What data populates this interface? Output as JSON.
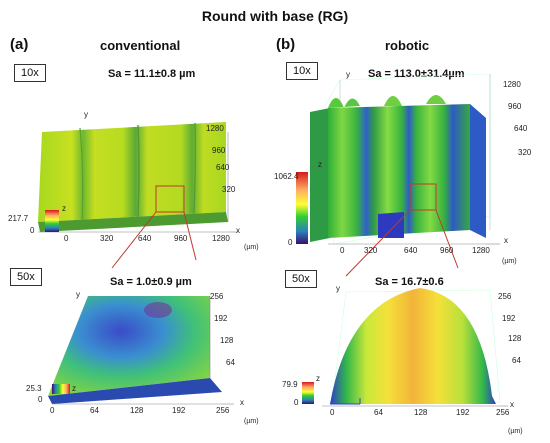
{
  "figure_title": "Round with base (RG)",
  "left": {
    "panel_label": "(a)",
    "column_title": "conventional",
    "mag_10x": {
      "label": "10x",
      "sa": "Sa = 11.1±0.8 µm",
      "y_ticks": [
        "1280",
        "960",
        "640",
        "320"
      ],
      "x_ticks": [
        "0",
        "320",
        "640",
        "960",
        "1280"
      ],
      "axis_y": "y",
      "axis_x": "x",
      "axis_z": "z",
      "colorbar_max": "217.7",
      "colorbar_min": "0",
      "unit": "(µm)"
    },
    "mag_50x": {
      "label": "50x",
      "sa": "Sa = 1.0±0.9 µm",
      "y_ticks": [
        "256",
        "192",
        "128",
        "64"
      ],
      "x_ticks": [
        "0",
        "64",
        "128",
        "192",
        "256"
      ],
      "axis_y": "y",
      "axis_x": "x",
      "axis_z": "z",
      "colorbar_max": "25.3",
      "colorbar_min": "0",
      "unit": "(µm)"
    }
  },
  "right": {
    "panel_label": "(b)",
    "column_title": "robotic",
    "mag_10x": {
      "label": "10x",
      "sa": "Sa = 113.0±31.4µm",
      "y_ticks": [
        "1280",
        "960",
        "640",
        "320"
      ],
      "x_ticks": [
        "0",
        "320",
        "640",
        "960",
        "1280"
      ],
      "axis_y": "y",
      "axis_x": "x",
      "axis_z": "z",
      "colorbar_max": "1062.4",
      "colorbar_min": "0",
      "unit": "(µm)"
    },
    "mag_50x": {
      "label": "50x",
      "sa": "Sa = 16.7±0.6",
      "y_ticks": [
        "256",
        "192",
        "128",
        "64"
      ],
      "x_ticks": [
        "0",
        "64",
        "128",
        "192",
        "256"
      ],
      "axis_y": "y",
      "axis_x": "x",
      "axis_z": "z",
      "colorbar_max": "79.9",
      "colorbar_min": "0",
      "unit": "(µm)"
    }
  },
  "colors": {
    "zoom_box": "#c0392b",
    "colormap": [
      "#d7191c",
      "#fdae61",
      "#ffff33",
      "#33cc33",
      "#2b83ba",
      "#3b0f70"
    ]
  }
}
